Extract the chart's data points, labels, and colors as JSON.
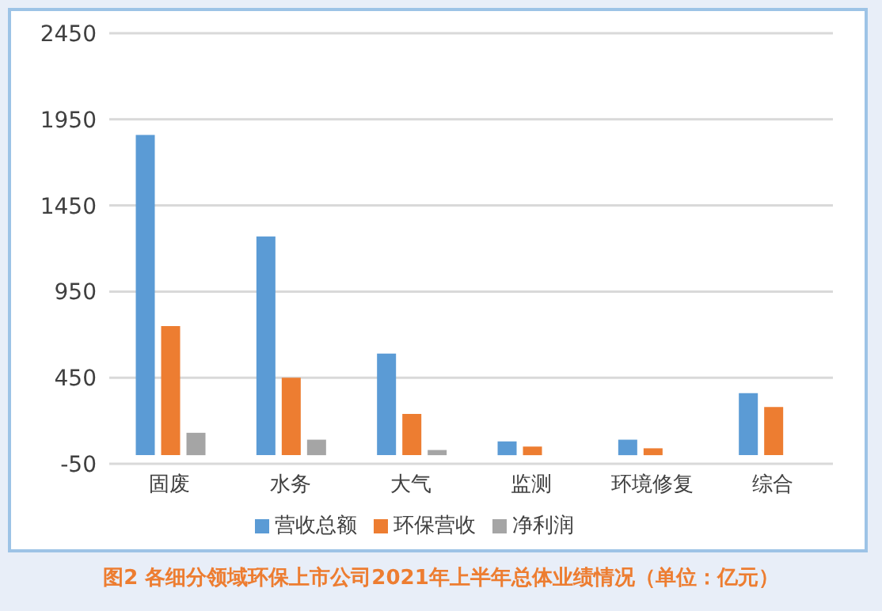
{
  "chart_data": {
    "type": "bar",
    "title": "图2 各细分领域环保上市公司2021年上半年总体业绩情况（单位：亿元）",
    "categories": [
      "固废",
      "水务",
      "大气",
      "监测",
      "环境修复",
      "综合"
    ],
    "series": [
      {
        "name": "营收总额",
        "color": "#5b9bd5",
        "values": [
          1860,
          1270,
          590,
          80,
          90,
          360
        ]
      },
      {
        "name": "环保营收",
        "color": "#ed7d31",
        "values": [
          750,
          450,
          240,
          50,
          40,
          280
        ]
      },
      {
        "name": "净利润",
        "color": "#a5a5a5",
        "values": [
          130,
          90,
          30,
          null,
          null,
          null
        ]
      }
    ],
    "ylim": [
      -50,
      2450
    ],
    "yticks": [
      -50,
      450,
      950,
      1450,
      1950,
      2450
    ],
    "grid": "y",
    "legend": "bottom"
  }
}
